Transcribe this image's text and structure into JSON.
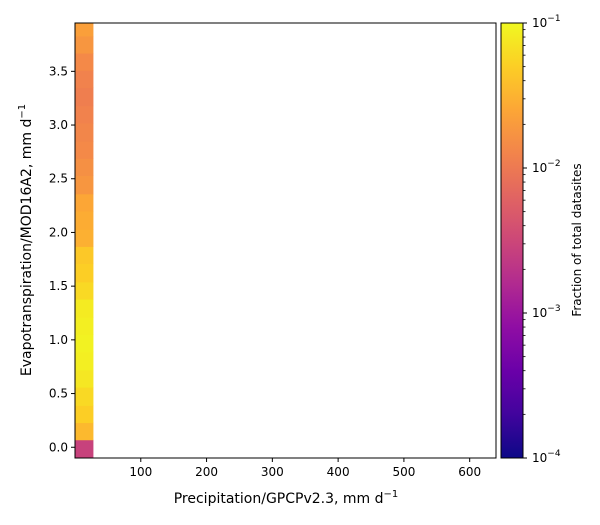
{
  "chart_data": {
    "type": "heatmap",
    "title": "",
    "xlabel": "Precipitation/GPCPv2.3,  mm d",
    "xlabel_sup": "−1",
    "ylabel": "Evapotranspiration/MOD16A2,  mm d",
    "ylabel_sup": "−1",
    "xlim": [
      0,
      640
    ],
    "ylim": [
      -0.1,
      3.95
    ],
    "x_ticks": [
      100,
      200,
      300,
      400,
      500,
      600
    ],
    "x_tick_labels": [
      "100",
      "200",
      "300",
      "400",
      "500",
      "600"
    ],
    "y_ticks": [
      0.0,
      0.5,
      1.0,
      1.5,
      2.0,
      2.5,
      3.0,
      3.5
    ],
    "y_tick_labels": [
      "0.0",
      "0.5",
      "1.0",
      "1.5",
      "2.0",
      "2.5",
      "3.0",
      "3.5"
    ],
    "colormap": "plasma",
    "colorbar": {
      "label": "Fraction of total datasites",
      "scale": "log",
      "range": [
        0.0001,
        0.1
      ],
      "ticks": [
        0.0001,
        0.001,
        0.01,
        0.1
      ],
      "tick_labels": [
        {
          "base": "10",
          "exp": "−4"
        },
        {
          "base": "10",
          "exp": "−3"
        },
        {
          "base": "10",
          "exp": "−2"
        },
        {
          "base": "10",
          "exp": "−1"
        }
      ]
    },
    "x_bin": [
      0,
      28
    ],
    "cells": [
      {
        "y0": -0.1,
        "y1": 0.07,
        "value": 0.0028
      },
      {
        "y0": 0.07,
        "y1": 0.23,
        "value": 0.035
      },
      {
        "y0": 0.23,
        "y1": 0.39,
        "value": 0.05
      },
      {
        "y0": 0.39,
        "y1": 0.56,
        "value": 0.06
      },
      {
        "y0": 0.56,
        "y1": 0.72,
        "value": 0.075
      },
      {
        "y0": 0.72,
        "y1": 0.89,
        "value": 0.085
      },
      {
        "y0": 0.89,
        "y1": 1.05,
        "value": 0.09
      },
      {
        "y0": 1.05,
        "y1": 1.21,
        "value": 0.085
      },
      {
        "y0": 1.21,
        "y1": 1.38,
        "value": 0.08
      },
      {
        "y0": 1.38,
        "y1": 1.54,
        "value": 0.06
      },
      {
        "y0": 1.54,
        "y1": 1.71,
        "value": 0.05
      },
      {
        "y0": 1.71,
        "y1": 1.87,
        "value": 0.045
      },
      {
        "y0": 1.87,
        "y1": 2.03,
        "value": 0.03
      },
      {
        "y0": 2.03,
        "y1": 2.2,
        "value": 0.028
      },
      {
        "y0": 2.2,
        "y1": 2.36,
        "value": 0.025
      },
      {
        "y0": 2.36,
        "y1": 2.53,
        "value": 0.018
      },
      {
        "y0": 2.53,
        "y1": 2.69,
        "value": 0.016
      },
      {
        "y0": 2.69,
        "y1": 2.85,
        "value": 0.014
      },
      {
        "y0": 2.85,
        "y1": 3.02,
        "value": 0.013
      },
      {
        "y0": 3.02,
        "y1": 3.18,
        "value": 0.012
      },
      {
        "y0": 3.18,
        "y1": 3.35,
        "value": 0.011
      },
      {
        "y0": 3.35,
        "y1": 3.51,
        "value": 0.012
      },
      {
        "y0": 3.51,
        "y1": 3.67,
        "value": 0.014
      },
      {
        "y0": 3.67,
        "y1": 3.83,
        "value": 0.018
      },
      {
        "y0": 3.83,
        "y1": 3.95,
        "value": 0.022
      }
    ]
  }
}
